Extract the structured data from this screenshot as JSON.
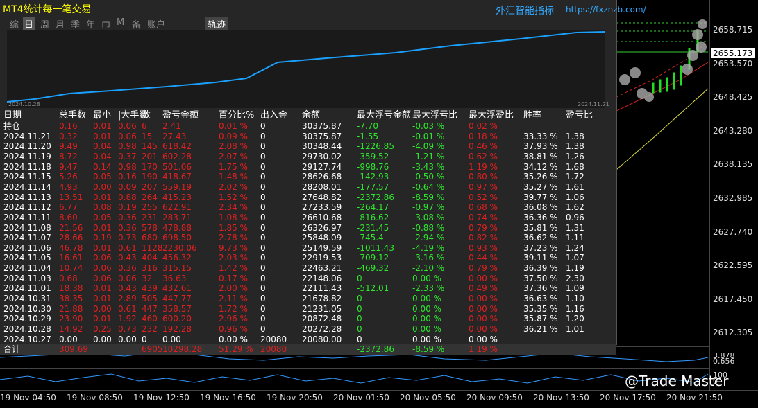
{
  "header": {
    "title": "MT4统计每一笔交易",
    "brand": "外汇智能指标",
    "url": "https://fxznzb.com/"
  },
  "tabs": [
    "综",
    "日",
    "周",
    "月",
    "季",
    "年",
    "巾",
    "M",
    "备",
    "账户"
  ],
  "track_tab": "轨迹",
  "equity_dates": [
    "2024.10.28",
    "2024.11.21"
  ],
  "table": {
    "headers": [
      "日期",
      "总手数",
      "最小",
      "|大手数",
      "数",
      "盈亏金额",
      "百分比%",
      "出入金",
      "余额",
      "最大浮亏金额",
      "最大浮亏比",
      "最大浮盈比",
      "胜率",
      "盈亏比"
    ],
    "rows": [
      [
        "持仓",
        "0.16",
        "0.01",
        "0.06",
        "6",
        "2.41",
        "0.01 %",
        "0",
        "30375.87",
        "-7.70",
        "-0.03 %",
        "0.02 %",
        null,
        null
      ],
      [
        "2024.11.21",
        "0.32",
        "0.01",
        "0.06",
        "15",
        "27.43",
        "0.09 %",
        "0",
        "30375.87",
        "-1.55",
        "-0.01 %",
        "0.18 %",
        "33.33 %",
        "1.38"
      ],
      [
        "2024.11.20",
        "9.49",
        "0.04",
        "0.98",
        "145",
        "618.42",
        "2.08 %",
        "0",
        "30348.44",
        "-1226.85",
        "-4.09 %",
        "0.46 %",
        "37.93 %",
        "1.38"
      ],
      [
        "2024.11.19",
        "8.72",
        "0.04",
        "0.37",
        "201",
        "602.28",
        "2.07 %",
        "0",
        "29730.02",
        "-359.52",
        "-1.21 %",
        "0.62 %",
        "38.81 %",
        "1.26"
      ],
      [
        "2024.11.18",
        "9.47",
        "0.14",
        "0.98",
        "170",
        "501.06",
        "1.75 %",
        "0",
        "29127.74",
        "-998.76",
        "-3.43 %",
        "1.19 %",
        "34.12 %",
        "1.68"
      ],
      [
        "2024.11.15",
        "5.26",
        "0.05",
        "0.16",
        "190",
        "418.67",
        "1.48 %",
        "0",
        "28626.68",
        "-142.93",
        "-0.50 %",
        "0.80 %",
        "35.26 %",
        "1.72"
      ],
      [
        "2024.11.14",
        "4.93",
        "0.00",
        "0.09",
        "207",
        "559.19",
        "2.02 %",
        "0",
        "28208.01",
        "-177.57",
        "-0.64 %",
        "0.97 %",
        "35.27 %",
        "1.61"
      ],
      [
        "2024.11.13",
        "13.51",
        "0.01",
        "0.88",
        "264",
        "415.23",
        "1.52 %",
        "0",
        "27648.82",
        "-2372.86",
        "-8.59 %",
        "0.52 %",
        "39.77 %",
        "1.06"
      ],
      [
        "2024.11.12",
        "6.77",
        "0.08",
        "0.19",
        "255",
        "622.91",
        "2.34 %",
        "0",
        "27233.59",
        "-264.17",
        "-0.97 %",
        "0.68 %",
        "36.08 %",
        "1.62"
      ],
      [
        "2024.11.11",
        "8.60",
        "0.05",
        "0.36",
        "231",
        "283.71",
        "1.08 %",
        "0",
        "26610.68",
        "-816.62",
        "-3.08 %",
        "0.74 %",
        "36.36 %",
        "0.96"
      ],
      [
        "2024.11.08",
        "21.56",
        "0.01",
        "0.36",
        "578",
        "478.88",
        "1.85 %",
        "0",
        "26326.97",
        "-231.45",
        "-0.88 %",
        "0.79 %",
        "35.81 %",
        "1.31"
      ],
      [
        "2024.11.07",
        "28.66",
        "0.19",
        "0.73",
        "680",
        "698.50",
        "2.78 %",
        "0",
        "25848.09",
        "-745.4",
        "-2.94 %",
        "0.82 %",
        "36.62 %",
        "1.11"
      ],
      [
        "2024.11.06",
        "46.78",
        "0.01",
        "0.61",
        "1128",
        "2230.06",
        "9.73 %",
        "0",
        "25149.59",
        "-1011.43",
        "-4.19 %",
        "0.93 %",
        "37.23 %",
        "1.24"
      ],
      [
        "2024.11.05",
        "16.61",
        "0.06",
        "0.43",
        "404",
        "456.32",
        "2.03 %",
        "0",
        "22919.53",
        "-709.12",
        "-3.16 %",
        "0.44 %",
        "39.11 %",
        "1.07"
      ],
      [
        "2024.11.04",
        "10.74",
        "0.06",
        "0.36",
        "316",
        "315.15",
        "1.42 %",
        "0",
        "22463.21",
        "-469.32",
        "-2.10 %",
        "0.79 %",
        "36.39 %",
        "1.19"
      ],
      [
        "2024.11.03",
        "0.68",
        "0.06",
        "0.06",
        "32",
        "36.63",
        "0.17 %",
        "0",
        "22148.06",
        "0",
        "0.00 %",
        "0.00 %",
        "37.50 %",
        "2.30"
      ],
      [
        "2024.11.01",
        "18.38",
        "0.01",
        "0.43",
        "439",
        "432.61",
        "2.00 %",
        "0",
        "22111.43",
        "-512.01",
        "-2.33 %",
        "0.49 %",
        "37.36 %",
        "1.09"
      ],
      [
        "2024.10.31",
        "38.35",
        "0.01",
        "2.89",
        "505",
        "447.77",
        "2.11 %",
        "0",
        "21678.82",
        "0",
        "0.00 %",
        "0.00 %",
        "36.63 %",
        "1.10"
      ],
      [
        "2024.10.30",
        "21.88",
        "0.00",
        "0.61",
        "447",
        "358.57",
        "1.72 %",
        "0",
        "21231.05",
        "0",
        "0.00 %",
        "0.00 %",
        "35.35 %",
        "1.16"
      ],
      [
        "2024.10.29",
        "23.90",
        "0.01",
        "1.92",
        "460",
        "600.20",
        "2.96 %",
        "0",
        "20872.48",
        "0",
        "0.00 %",
        "0.00 %",
        "35.87 %",
        "1.20"
      ],
      [
        "2024.10.28",
        "14.92",
        "0.25",
        "0.73",
        "232",
        "192.28",
        "0.96 %",
        "0",
        "20272.28",
        "0",
        "0.00 %",
        "0.00 %",
        "36.21 %",
        "1.01"
      ],
      [
        "2024.10.27",
        "0.00",
        "0.00",
        "0.00",
        "0",
        "0.00",
        "0.00 %",
        "20080",
        "20080.00",
        "0",
        "0.00 %",
        "0.00 %",
        null,
        null
      ],
      [
        "合计",
        "309.69",
        null,
        null,
        "6905",
        "10298.28",
        "51.29 %",
        "20080",
        null,
        "-2372.86",
        "-8.59 %",
        "1.19 %",
        null,
        null
      ]
    ]
  },
  "price_axis": [
    "2658.715",
    "2653.570",
    "2648.425",
    "2643.280",
    "2638.135",
    "2632.985",
    "2627.740",
    "2622.595",
    "2617.450",
    "2612.305"
  ],
  "current_price": "2655.173",
  "indicator_labels": [
    "3.878",
    "0.656",
    "100",
    "0"
  ],
  "time_axis": [
    "19 Nov 04:50",
    "19 Nov 08:50",
    "19 Nov 12:50",
    "19 Nov 16:50",
    "19 Nov 20:50",
    "20 Nov 01:50",
    "20 Nov 05:50",
    "20 Nov 09:50",
    "20 Nov 13:50",
    "20 Nov 17:50",
    "20 Nov 21:50"
  ],
  "watermark": "@Trade Master"
}
